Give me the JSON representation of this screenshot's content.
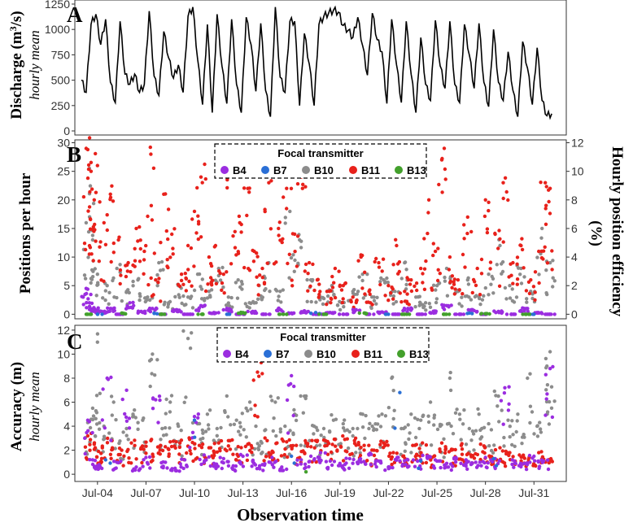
{
  "x_axis": {
    "title": "Observation time",
    "tick_labels": [
      "Jul-04",
      "Jul-07",
      "Jul-10",
      "Jul-13",
      "Jul-16",
      "Jul-19",
      "Jul-22",
      "Jul-25",
      "Jul-28",
      "Jul-31"
    ],
    "tick_days": [
      4,
      7,
      10,
      13,
      16,
      19,
      22,
      25,
      28,
      31
    ],
    "range_days": [
      2.6,
      33.0
    ]
  },
  "legend": {
    "title": "Focal transmitter",
    "items": [
      {
        "label": "B4",
        "color": "#9b2de0"
      },
      {
        "label": "B7",
        "color": "#2a6fd6"
      },
      {
        "label": "B10",
        "color": "#8c8c8c"
      },
      {
        "label": "B11",
        "color": "#e8211b"
      },
      {
        "label": "B13",
        "color": "#43a02c"
      }
    ]
  },
  "chart_data": [
    {
      "panel": "A",
      "type": "line",
      "ylabel": "Discharge (m³/s)",
      "ylabel_prefix": "Discharge (m",
      "ylabel_sup": "3",
      "ylabel_suffix": "/s)",
      "ylabel_sub": "hourly mean",
      "yticks": [
        "0",
        "250",
        "500",
        "750",
        "1000",
        "1250"
      ],
      "ylim": [
        -40,
        1290
      ],
      "series": [
        {
          "name": "Discharge",
          "x": [
            3.0,
            3.3,
            3.6,
            3.9,
            4.2,
            4.5,
            4.8,
            5.1,
            5.4,
            5.7,
            6.0,
            6.3,
            6.6,
            6.9,
            7.2,
            7.5,
            7.8,
            8.1,
            8.4,
            8.7,
            9.0,
            9.3,
            9.6,
            9.9,
            10.2,
            10.5,
            10.8,
            11.1,
            11.4,
            11.7,
            12.0,
            12.3,
            12.6,
            12.9,
            13.2,
            13.5,
            13.8,
            14.1,
            14.4,
            14.7,
            15.0,
            15.3,
            15.6,
            15.9,
            16.2,
            16.5,
            16.8,
            17.1,
            17.4,
            17.7,
            18.0,
            18.3,
            18.6,
            18.9,
            19.2,
            19.5,
            19.8,
            20.1,
            20.4,
            20.7,
            21.0,
            21.3,
            21.6,
            21.9,
            22.2,
            22.5,
            22.8,
            23.1,
            23.4,
            23.7,
            24.0,
            24.3,
            24.6,
            24.9,
            25.2,
            25.5,
            25.8,
            26.1,
            26.4,
            26.7,
            27.0,
            27.3,
            27.6,
            27.9,
            28.2,
            28.5,
            28.8,
            29.1,
            29.4,
            29.7,
            30.0,
            30.3,
            30.6,
            30.9,
            31.2,
            31.5,
            31.8,
            32.1
          ],
          "values": [
            500,
            380,
            1050,
            1150,
            850,
            1100,
            480,
            280,
            1080,
            560,
            460,
            560,
            380,
            460,
            1180,
            540,
            350,
            980,
            720,
            520,
            650,
            380,
            1130,
            1220,
            700,
            260,
            1050,
            180,
            1150,
            640,
            270,
            1100,
            460,
            180,
            1120,
            850,
            390,
            1060,
            400,
            140,
            1220,
            530,
            380,
            1080,
            1080,
            250,
            960,
            660,
            250,
            1050,
            1130,
            1160,
            1190,
            1170,
            1040,
            990,
            920,
            1120,
            840,
            550,
            1160,
            900,
            780,
            270,
            1100,
            650,
            280,
            1080,
            560,
            180,
            920,
            460,
            300,
            1090,
            640,
            420,
            1080,
            460,
            280,
            1050,
            750,
            420,
            1060,
            480,
            240,
            1000,
            480,
            300,
            780,
            400,
            140,
            880,
            620,
            260,
            820,
            300,
            150,
            170
          ]
        }
      ]
    },
    {
      "panel": "B",
      "type": "scatter",
      "ylabel": "Positions per hour",
      "ylabel_right": "Hourly position efficiency (%)",
      "yticks": [
        "0",
        "5",
        "10",
        "15",
        "20",
        "25",
        "30"
      ],
      "yticks_right": [
        "0",
        "2",
        "4",
        "6",
        "8",
        "10",
        "12"
      ],
      "ylim": [
        -0.8,
        30.5
      ],
      "summary": "Many hourly points per transmitter; B11 spread widely (0 to ~29 positions/h), B10 mostly 0-10 with peaks near 25, B4 near 0-4, B7 and B13 clustered near 0.",
      "series": [
        {
          "name": "B11",
          "x": [
            3.3,
            3.4,
            3.6,
            3.8,
            4.0,
            4.4,
            4.8,
            5.3,
            5.9,
            6.4,
            6.9,
            7.3,
            7.6,
            8.1,
            8.6,
            9.2,
            9.6,
            10.0,
            10.4,
            10.9,
            11.3,
            11.8,
            12.3,
            12.8,
            13.3,
            13.7,
            14.2,
            14.6,
            15.2,
            15.7,
            16.2,
            16.6,
            17.1,
            17.6,
            18.2,
            18.7,
            19.2,
            19.8,
            20.3,
            20.8,
            21.4,
            22.0,
            22.5,
            23.0,
            23.4,
            24.0,
            24.5,
            24.9,
            25.3,
            25.8,
            26.3,
            26.9,
            27.5,
            28.0,
            28.6,
            29.1,
            29.7,
            30.2,
            30.8,
            31.3,
            31.7,
            32.0
          ],
          "values": [
            29,
            28.8,
            25,
            20,
            26,
            16,
            21,
            13,
            9,
            15,
            11,
            28,
            6,
            21,
            14,
            7,
            12,
            18,
            24,
            10,
            12,
            7,
            25,
            16,
            22,
            11,
            8,
            23,
            15,
            22,
            14,
            24,
            9,
            6,
            4,
            8,
            5,
            3,
            10,
            4,
            9,
            5,
            12,
            4,
            6,
            8,
            20,
            11,
            27,
            10,
            6,
            17,
            8,
            20,
            14,
            23,
            9,
            12,
            6,
            11,
            23,
            22
          ]
        },
        {
          "name": "B10",
          "x": [
            3.3,
            3.5,
            3.7,
            4.0,
            4.6,
            5.2,
            5.8,
            6.5,
            7.1,
            7.8,
            8.4,
            9.0,
            9.6,
            10.2,
            10.9,
            11.5,
            12.1,
            12.7,
            13.4,
            14.0,
            14.6,
            15.3,
            15.9,
            16.5,
            17.2,
            17.8,
            18.5,
            19.1,
            19.8,
            20.4,
            21.1,
            21.7,
            22.4,
            23.0,
            23.7,
            24.3,
            25.0,
            25.6,
            26.3,
            26.9,
            27.6,
            28.2,
            28.9,
            29.5,
            30.2,
            30.8,
            31.5,
            32.0
          ],
          "values": [
            16,
            25.5,
            13,
            7,
            5,
            8,
            4,
            6,
            3,
            9,
            2,
            5,
            3,
            7,
            4,
            8,
            3,
            6,
            2,
            5,
            9,
            4,
            18,
            13,
            6,
            3,
            5,
            2,
            4,
            7,
            3,
            6,
            4,
            9,
            3,
            2,
            5,
            8,
            4,
            6,
            3,
            7,
            12,
            5,
            8,
            4,
            15,
            9
          ]
        },
        {
          "name": "B4",
          "x": [
            3.3,
            3.5,
            3.8,
            4.2,
            4.8,
            5.4,
            6.0,
            6.7,
            7.4,
            8.1,
            8.9,
            9.6,
            10.4,
            11.2,
            12.0,
            12.8,
            13.6,
            14.4,
            15.2,
            16.0,
            16.8,
            17.6,
            18.4,
            19.2,
            20.0,
            20.8,
            21.6,
            22.4,
            23.2,
            24.0,
            24.8,
            25.6,
            26.4,
            27.2,
            28.0,
            28.8,
            29.6,
            30.4,
            31.2,
            32.0
          ],
          "values": [
            4.5,
            2,
            1,
            0.5,
            1,
            0,
            2,
            0.5,
            1,
            0,
            0.8,
            0,
            1.5,
            0.3,
            1,
            0,
            0.5,
            0,
            1,
            0.2,
            0.6,
            0,
            0.3,
            0,
            0.8,
            0,
            0.4,
            0,
            1,
            0,
            0.5,
            1.5,
            0,
            0.8,
            0,
            0.5,
            0,
            1,
            0.3,
            0
          ]
        },
        {
          "name": "B7",
          "x": [
            4.0,
            7.5,
            12.0,
            17.5,
            22.0,
            27.0,
            31.0
          ],
          "values": [
            0,
            0.2,
            0,
            0.3,
            0,
            0.2,
            0
          ]
        },
        {
          "name": "B13",
          "x": [
            3.4,
            5.5,
            8.0,
            10.5,
            13.0,
            15.5,
            18.0,
            20.5,
            23.0,
            25.5,
            28.0,
            30.5
          ],
          "values": [
            0,
            0.2,
            0,
            0,
            0.3,
            0,
            0,
            0.2,
            0,
            0,
            0.1,
            0
          ]
        }
      ]
    },
    {
      "panel": "C",
      "type": "scatter",
      "ylabel": "Accuracy (m)",
      "ylabel_sub": "hourly mean",
      "yticks": [
        "0",
        "2",
        "4",
        "6",
        "8",
        "10",
        "12"
      ],
      "ylim": [
        -0.6,
        12.4
      ],
      "summary": "B10 accuracy mostly 3-6 m (up to ~11 m), B11 clustered around 2-3 m, B4 around 0.5-2 m with a few higher values.",
      "series": [
        {
          "name": "B10",
          "x": [
            3.4,
            3.7,
            4.0,
            4.4,
            5.0,
            5.6,
            6.2,
            6.8,
            7.4,
            8.0,
            8.5,
            9.0,
            9.6,
            10.2,
            10.8,
            11.4,
            12.0,
            12.6,
            13.2,
            13.8,
            14.4,
            15.0,
            15.6,
            16.2,
            16.8,
            17.4,
            18.0,
            18.6,
            19.2,
            19.8,
            20.4,
            21.0,
            21.6,
            22.2,
            22.8,
            23.4,
            24.0,
            24.6,
            25.2,
            25.8,
            26.4,
            27.0,
            27.6,
            28.2,
            28.8,
            29.4,
            30.0,
            30.6,
            31.2,
            31.8,
            32.0
          ],
          "values": [
            4.3,
            5.5,
            11,
            4,
            6,
            3.5,
            5,
            4.5,
            10,
            3.8,
            6,
            4,
            11.3,
            4.2,
            5,
            3.8,
            10,
            4.5,
            5.5,
            4,
            3.7,
            6,
            4,
            5,
            6.5,
            4,
            3.8,
            4.5,
            4.2,
            3.8,
            5,
            4,
            5,
            8,
            3.8,
            5,
            4.5,
            6,
            4,
            8,
            5,
            3.8,
            5,
            4.2,
            6.5,
            4.5,
            5,
            8,
            4,
            9,
            10.2
          ]
        },
        {
          "name": "B11",
          "x": [
            3.4,
            3.8,
            4.3,
            4.9,
            5.5,
            6.1,
            6.7,
            7.3,
            7.9,
            8.5,
            9.1,
            9.7,
            10.3,
            10.9,
            11.5,
            12.1,
            12.7,
            13.3,
            13.9,
            14.5,
            15.1,
            15.7,
            16.3,
            16.9,
            17.5,
            18.1,
            18.7,
            19.3,
            19.9,
            20.5,
            21.1,
            21.7,
            22.3,
            22.9,
            23.5,
            24.1,
            24.7,
            25.3,
            25.9,
            26.5,
            27.1,
            27.7,
            28.3,
            28.9,
            29.5,
            30.1,
            30.7,
            31.3,
            31.9
          ],
          "values": [
            3.2,
            2.5,
            2.2,
            2.8,
            2,
            2.6,
            2.2,
            2.8,
            2.4,
            2.7,
            2.6,
            2.9,
            2.4,
            2.2,
            2.6,
            2.8,
            2.3,
            2.5,
            8.5,
            2.8,
            2.6,
            2.7,
            2.4,
            2.6,
            2.8,
            2.8,
            2.9,
            2.9,
            2.8,
            2.4,
            2,
            2.6,
            1.8,
            1.5,
            2.4,
            2.6,
            1.4,
            2.6,
            2,
            2.4,
            1.6,
            2.5,
            1.4,
            2.2,
            1.8,
            1.6,
            1.4,
            1.8,
            1.2
          ]
        },
        {
          "name": "B4",
          "x": [
            3.4,
            3.7,
            4.1,
            4.6,
            5.2,
            5.8,
            6.4,
            7.0,
            7.6,
            8.2,
            8.8,
            9.4,
            10.0,
            10.6,
            11.2,
            11.8,
            12.4,
            13.0,
            13.6,
            14.2,
            14.8,
            15.4,
            16.0,
            16.6,
            17.2,
            17.8,
            18.4,
            19.0,
            19.6,
            20.2,
            20.8,
            21.4,
            22.0,
            22.6,
            23.2,
            23.8,
            24.4,
            25.0,
            25.6,
            26.2,
            26.8,
            27.4,
            28.0,
            28.6,
            29.2,
            29.8,
            30.4,
            31.0,
            31.6,
            32.0
          ],
          "values": [
            4.5,
            1.2,
            0.8,
            8,
            1,
            7,
            0.6,
            1.4,
            6.2,
            1,
            0.5,
            1.2,
            4.8,
            1.6,
            0.9,
            1.3,
            0.7,
            1.5,
            1.1,
            0.8,
            1.4,
            0.6,
            8.2,
            1.2,
            1.5,
            1.8,
            1.1,
            0.9,
            1.3,
            1.2,
            1.6,
            1.1,
            0.6,
            1.4,
            1.2,
            1.1,
            1.5,
            1.1,
            0.9,
            1.3,
            1.2,
            1.0,
            1.4,
            1.3,
            7.2,
            1.1,
            0.9,
            1.5,
            1.1,
            8.8
          ]
        },
        {
          "name": "B7",
          "x": [
            4.5,
            10.0,
            16.0,
            22.7,
            24.0,
            28.5
          ],
          "values": [
            1.2,
            4.5,
            1.5,
            6.8,
            1.1,
            1.3
          ]
        },
        {
          "name": "B13",
          "x": [
            16.9
          ],
          "values": [
            0.2
          ]
        }
      ]
    }
  ]
}
